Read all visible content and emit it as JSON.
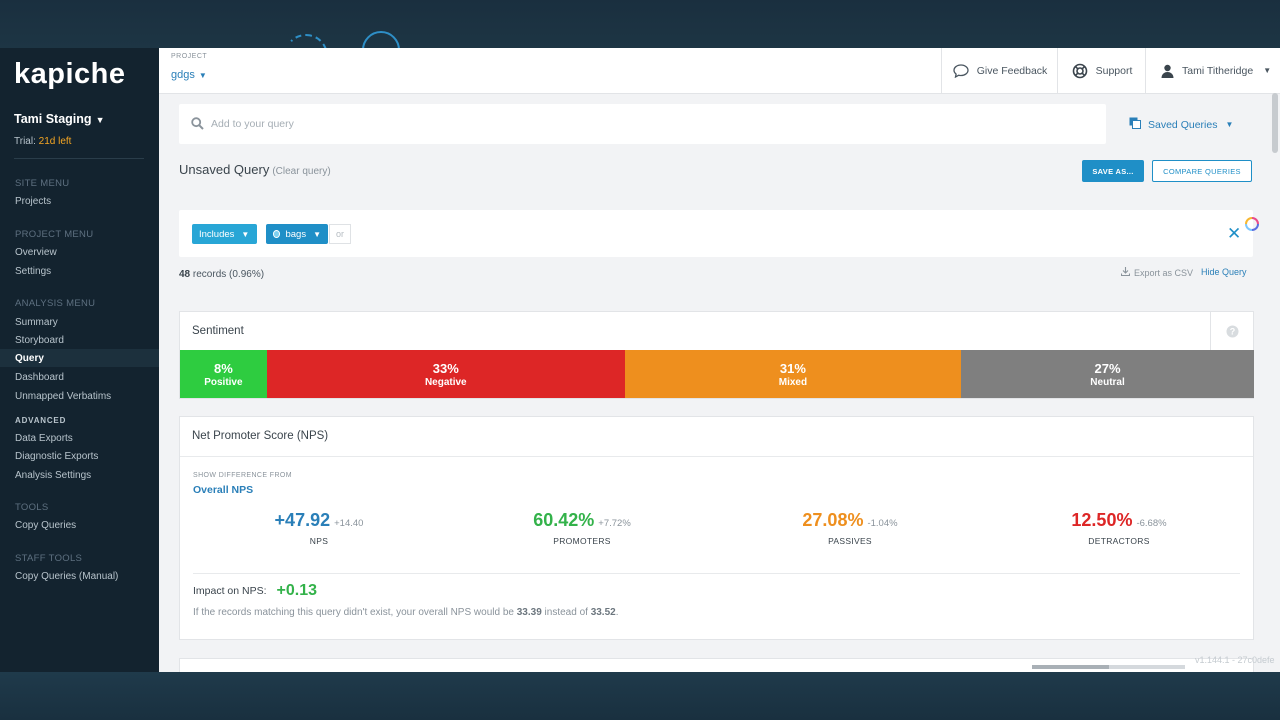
{
  "brand": {
    "logo_text": "kapiche"
  },
  "sidebar": {
    "account_name": "Tami Staging",
    "trial_label": "Trial: ",
    "trial_days": "21d left",
    "sections": [
      {
        "heading": "SITE MENU",
        "items": [
          "Projects"
        ]
      },
      {
        "heading": "PROJECT MENU",
        "items": [
          "Overview",
          "Settings"
        ]
      },
      {
        "heading": "ANALYSIS MENU",
        "items": [
          "Summary",
          "Storyboard",
          "Query",
          "Dashboard",
          "Unmapped Verbatims"
        ]
      },
      {
        "heading": "ADVANCED",
        "items": [
          "Data Exports",
          "Diagnostic Exports",
          "Analysis Settings"
        ]
      },
      {
        "heading": "TOOLS",
        "items": [
          "Copy Queries"
        ]
      },
      {
        "heading": "STAFF TOOLS",
        "items": [
          "Copy Queries (Manual)"
        ]
      }
    ],
    "active_item": "Query"
  },
  "topbar": {
    "project_label": "PROJECT",
    "project_name": "gdgs",
    "give_feedback": "Give Feedback",
    "support": "Support",
    "user_name": "Tami Titheridge"
  },
  "query": {
    "search_placeholder": "Add to your query",
    "saved_queries": "Saved Queries",
    "title": "Unsaved Query",
    "clear_label": "(Clear query)",
    "save_as": "SAVE AS...",
    "compare": "COMPARE QUERIES",
    "filter_includes": "Includes",
    "filter_term": "bags",
    "filter_or": "or",
    "records_count": "48",
    "records_text": "records (0.96%)",
    "export_csv": "Export as CSV",
    "hide_query": "Hide Query"
  },
  "sentiment": {
    "title": "Sentiment",
    "segments": [
      {
        "pct": "8%",
        "label": "Positive",
        "value": 8,
        "color": "#2ecc40"
      },
      {
        "pct": "33%",
        "label": "Negative",
        "value": 33,
        "color": "#dd2626"
      },
      {
        "pct": "31%",
        "label": "Mixed",
        "value": 31,
        "color": "#ee8f1e"
      },
      {
        "pct": "27%",
        "label": "Neutral",
        "value": 27,
        "color": "#7f7f7f"
      }
    ]
  },
  "nps": {
    "title": "Net Promoter Score (NPS)",
    "show_diff_label": "SHOW DIFFERENCE FROM",
    "show_diff_value": "Overall NPS",
    "metrics": [
      {
        "value": "+47.92",
        "delta": "+14.40",
        "label": "NPS",
        "color": "#2a7fb8"
      },
      {
        "value": "60.42%",
        "delta": "+7.72%",
        "label": "PROMOTERS",
        "color": "#33b24a"
      },
      {
        "value": "27.08%",
        "delta": "-1.04%",
        "label": "PASSIVES",
        "color": "#ee8f1e"
      },
      {
        "value": "12.50%",
        "delta": "-6.68%",
        "label": "DETRACTORS",
        "color": "#dd2626"
      }
    ],
    "impact_label": "Impact on NPS:",
    "impact_value": "+0.13",
    "explain_pre": "If the records matching this query didn't exist, your overall NPS would be ",
    "explain_v1": "33.39",
    "explain_mid": " instead of ",
    "explain_v2": "33.52",
    "explain_post": "."
  },
  "footer": {
    "version": "v1.144.1 - 27c0defe"
  }
}
